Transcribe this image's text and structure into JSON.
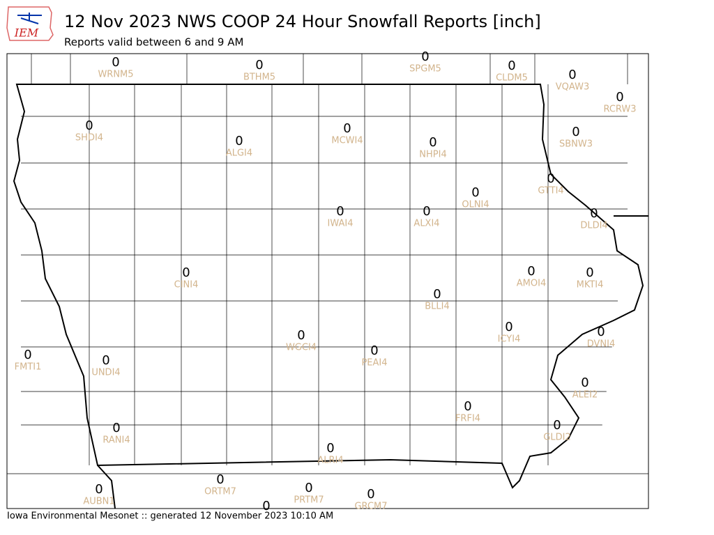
{
  "header": {
    "logo": "IEM",
    "title": "12 Nov 2023 NWS COOP 24 Hour Snowfall Reports [inch]",
    "subtitle": "Reports valid between 6 and 9 AM"
  },
  "stations": [
    {
      "id": "WRNM5",
      "value": 0
    },
    {
      "id": "BTHM5",
      "value": 0
    },
    {
      "id": "SPGM5",
      "value": 0
    },
    {
      "id": "CLDM5",
      "value": 0
    },
    {
      "id": "VQAW3",
      "value": 0
    },
    {
      "id": "RCRW3",
      "value": 0
    },
    {
      "id": "SHDI4",
      "value": 0
    },
    {
      "id": "ALGI4",
      "value": 0
    },
    {
      "id": "MCWI4",
      "value": 0
    },
    {
      "id": "NHPI4",
      "value": 0
    },
    {
      "id": "SBNW3",
      "value": 0
    },
    {
      "id": "GTTI4",
      "value": 0
    },
    {
      "id": "OLNI4",
      "value": 0
    },
    {
      "id": "IWAI4",
      "value": 0
    },
    {
      "id": "ALXI4",
      "value": 0
    },
    {
      "id": "DLDI4",
      "value": 0
    },
    {
      "id": "CINI4",
      "value": 0
    },
    {
      "id": "AMOI4",
      "value": 0
    },
    {
      "id": "MKTI4",
      "value": 0
    },
    {
      "id": "BLLI4",
      "value": 0
    },
    {
      "id": "ICYI4",
      "value": 0
    },
    {
      "id": "DVNI4",
      "value": 0
    },
    {
      "id": "WGCI4",
      "value": 0
    },
    {
      "id": "PEAI4",
      "value": 0
    },
    {
      "id": "FMTI1",
      "value": 0
    },
    {
      "id": "UNDI4",
      "value": 0
    },
    {
      "id": "ALEI2",
      "value": 0
    },
    {
      "id": "FRFI4",
      "value": 0
    },
    {
      "id": "GLDI2",
      "value": 0
    },
    {
      "id": "RANI4",
      "value": 0
    },
    {
      "id": "ALRI4",
      "value": 0
    },
    {
      "id": "ORTM7",
      "value": 0
    },
    {
      "id": "PRTM7",
      "value": 0
    },
    {
      "id": "AUBN1",
      "value": 0
    },
    {
      "id": "GRCM7",
      "value": 0
    },
    {
      "value": 0
    }
  ],
  "footer": "Iowa Environmental Mesonet :: generated 12 November 2023 10:10 AM"
}
